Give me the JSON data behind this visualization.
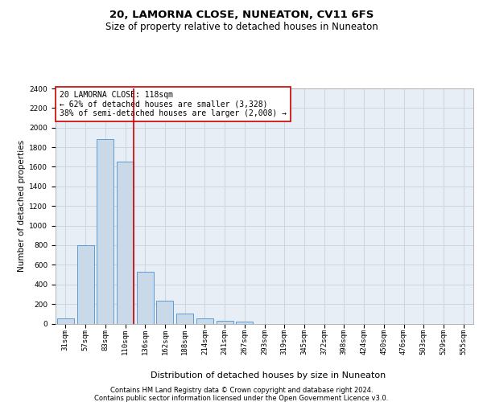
{
  "title": "20, LAMORNA CLOSE, NUNEATON, CV11 6FS",
  "subtitle": "Size of property relative to detached houses in Nuneaton",
  "xlabel": "Distribution of detached houses by size in Nuneaton",
  "ylabel": "Number of detached properties",
  "categories": [
    "31sqm",
    "57sqm",
    "83sqm",
    "110sqm",
    "136sqm",
    "162sqm",
    "188sqm",
    "214sqm",
    "241sqm",
    "267sqm",
    "293sqm",
    "319sqm",
    "345sqm",
    "372sqm",
    "398sqm",
    "424sqm",
    "450sqm",
    "476sqm",
    "503sqm",
    "529sqm",
    "555sqm"
  ],
  "values": [
    50,
    800,
    1880,
    1650,
    530,
    230,
    100,
    50,
    30,
    20,
    0,
    0,
    0,
    0,
    0,
    0,
    0,
    0,
    0,
    0,
    0
  ],
  "bar_color": "#c9d9e8",
  "bar_edge_color": "#5b9bd5",
  "vline_index": 3,
  "vline_color": "#cc0000",
  "annotation_text": "20 LAMORNA CLOSE: 118sqm\n← 62% of detached houses are smaller (3,328)\n38% of semi-detached houses are larger (2,008) →",
  "annotation_box_facecolor": "#ffffff",
  "annotation_box_edgecolor": "#cc0000",
  "ylim": [
    0,
    2400
  ],
  "yticks": [
    0,
    200,
    400,
    600,
    800,
    1000,
    1200,
    1400,
    1600,
    1800,
    2000,
    2200,
    2400
  ],
  "grid_color": "#ccd6e0",
  "background_color": "#e8eef5",
  "footer_line1": "Contains HM Land Registry data © Crown copyright and database right 2024.",
  "footer_line2": "Contains public sector information licensed under the Open Government Licence v3.0.",
  "title_fontsize": 9.5,
  "subtitle_fontsize": 8.5,
  "xlabel_fontsize": 8,
  "ylabel_fontsize": 7.5,
  "tick_fontsize": 6.5,
  "annotation_fontsize": 7,
  "footer_fontsize": 6
}
